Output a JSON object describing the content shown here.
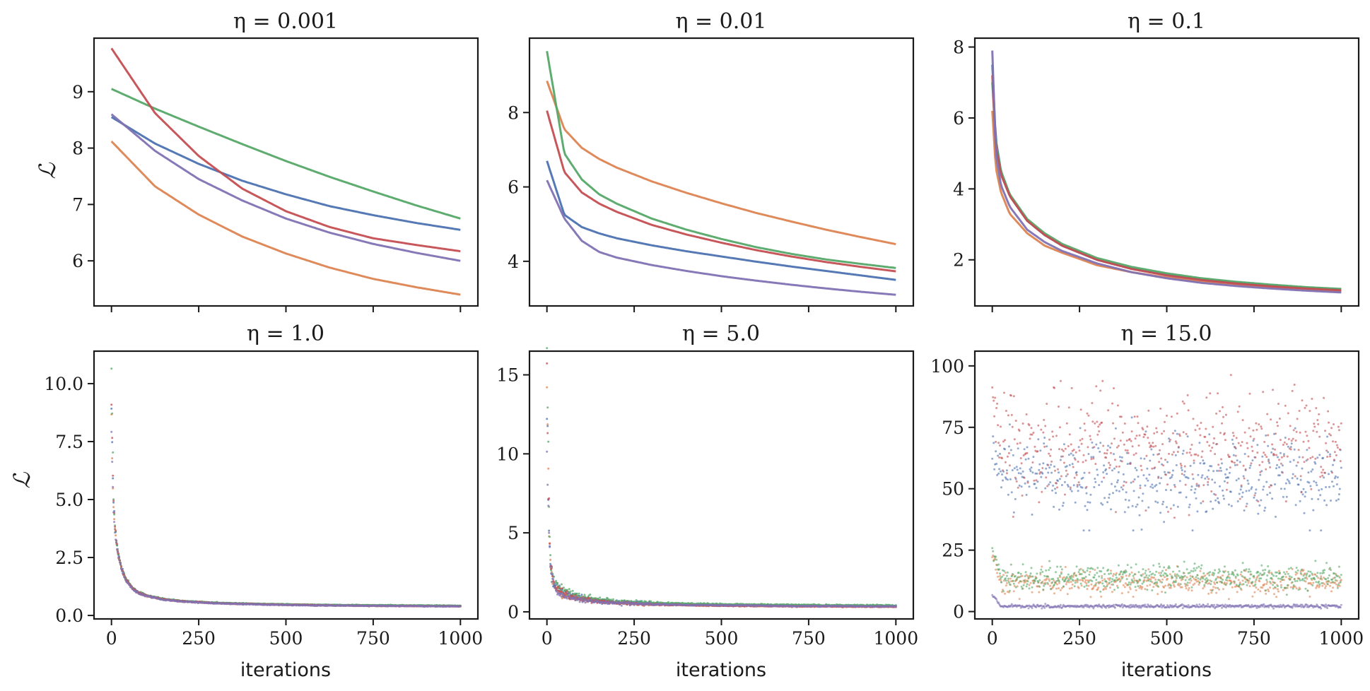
{
  "chart_data": [
    {
      "type": "scatter",
      "title": "η = 0.001",
      "xlabel": "",
      "ylabel": "ℒ",
      "xlim": [
        -50,
        1050
      ],
      "ylim": [
        5.2,
        9.95
      ],
      "x_ticks": [
        0,
        250,
        500,
        750,
        1000
      ],
      "x_tick_labels_shown": false,
      "y_ticks": [
        6,
        7,
        8,
        9
      ],
      "y_tick_labels": [
        "6",
        "7",
        "8",
        "9"
      ],
      "x": [
        0,
        125,
        250,
        375,
        500,
        625,
        750,
        875,
        1000
      ],
      "series": [
        {
          "name": "blue",
          "values": [
            8.55,
            8.08,
            7.72,
            7.42,
            7.18,
            6.97,
            6.81,
            6.67,
            6.55
          ]
        },
        {
          "name": "orange",
          "values": [
            8.12,
            7.32,
            6.82,
            6.43,
            6.13,
            5.88,
            5.68,
            5.53,
            5.4
          ]
        },
        {
          "name": "green",
          "values": [
            9.05,
            8.7,
            8.38,
            8.07,
            7.77,
            7.49,
            7.23,
            6.98,
            6.75
          ]
        },
        {
          "name": "red",
          "values": [
            9.77,
            8.62,
            7.86,
            7.28,
            6.88,
            6.6,
            6.4,
            6.28,
            6.17
          ]
        },
        {
          "name": "purple",
          "values": [
            8.6,
            7.95,
            7.45,
            7.07,
            6.75,
            6.5,
            6.3,
            6.14,
            6.0
          ]
        }
      ]
    },
    {
      "type": "scatter",
      "title": "η = 0.01",
      "xlabel": "",
      "ylabel": "",
      "xlim": [
        -50,
        1050
      ],
      "ylim": [
        2.8,
        10.0
      ],
      "x_ticks": [
        0,
        250,
        500,
        750,
        1000
      ],
      "x_tick_labels_shown": false,
      "y_ticks": [
        4,
        6,
        8
      ],
      "y_tick_labels": [
        "4",
        "6",
        "8"
      ],
      "x": [
        0,
        50,
        100,
        150,
        200,
        300,
        400,
        500,
        600,
        700,
        800,
        900,
        1000
      ],
      "series": [
        {
          "name": "blue",
          "values": [
            6.7,
            5.25,
            4.92,
            4.75,
            4.62,
            4.43,
            4.27,
            4.13,
            3.99,
            3.86,
            3.74,
            3.62,
            3.5
          ]
        },
        {
          "name": "orange",
          "values": [
            8.85,
            7.55,
            7.05,
            6.75,
            6.52,
            6.15,
            5.84,
            5.56,
            5.3,
            5.07,
            4.85,
            4.65,
            4.46
          ]
        },
        {
          "name": "green",
          "values": [
            9.65,
            6.9,
            6.2,
            5.8,
            5.55,
            5.15,
            4.85,
            4.6,
            4.38,
            4.2,
            4.05,
            3.93,
            3.82
          ]
        },
        {
          "name": "red",
          "values": [
            8.05,
            6.4,
            5.85,
            5.55,
            5.33,
            4.98,
            4.72,
            4.5,
            4.3,
            4.13,
            3.98,
            3.85,
            3.73
          ]
        },
        {
          "name": "purple",
          "values": [
            6.18,
            5.15,
            4.55,
            4.25,
            4.1,
            3.9,
            3.74,
            3.6,
            3.48,
            3.37,
            3.27,
            3.18,
            3.1
          ]
        }
      ]
    },
    {
      "type": "scatter",
      "title": "η = 0.1",
      "xlabel": "",
      "ylabel": "",
      "xlim": [
        -50,
        1050
      ],
      "ylim": [
        0.7,
        8.25
      ],
      "x_ticks": [
        0,
        250,
        500,
        750,
        1000
      ],
      "x_tick_labels_shown": false,
      "y_ticks": [
        2,
        4,
        6,
        8
      ],
      "y_tick_labels": [
        "2",
        "4",
        "6",
        "8"
      ],
      "x": [
        0,
        10,
        25,
        50,
        100,
        150,
        200,
        300,
        400,
        500,
        600,
        700,
        800,
        900,
        1000
      ],
      "series": [
        {
          "name": "blue",
          "values": [
            7.5,
            5.4,
            4.5,
            3.8,
            3.1,
            2.7,
            2.4,
            2.0,
            1.75,
            1.58,
            1.45,
            1.35,
            1.27,
            1.21,
            1.16
          ]
        },
        {
          "name": "orange",
          "values": [
            6.2,
            4.6,
            3.9,
            3.3,
            2.75,
            2.4,
            2.2,
            1.85,
            1.65,
            1.5,
            1.38,
            1.29,
            1.22,
            1.16,
            1.11
          ]
        },
        {
          "name": "green",
          "values": [
            7.0,
            5.3,
            4.5,
            3.85,
            3.15,
            2.75,
            2.45,
            2.05,
            1.8,
            1.62,
            1.48,
            1.38,
            1.3,
            1.23,
            1.18
          ]
        },
        {
          "name": "red",
          "values": [
            7.2,
            5.2,
            4.4,
            3.8,
            3.1,
            2.7,
            2.4,
            2.0,
            1.74,
            1.56,
            1.43,
            1.33,
            1.25,
            1.19,
            1.14
          ]
        },
        {
          "name": "purple",
          "values": [
            7.9,
            5.0,
            4.1,
            3.5,
            2.85,
            2.5,
            2.25,
            1.9,
            1.65,
            1.48,
            1.35,
            1.26,
            1.19,
            1.13,
            1.08
          ]
        }
      ]
    },
    {
      "type": "scatter",
      "title": "η = 1.0",
      "xlabel": "iterations",
      "ylabel": "ℒ",
      "xlim": [
        -50,
        1050
      ],
      "ylim": [
        -0.15,
        11.4
      ],
      "x_ticks": [
        0,
        250,
        500,
        750,
        1000
      ],
      "x_tick_labels": [
        "0",
        "250",
        "500",
        "750",
        "1000"
      ],
      "y_ticks": [
        0.0,
        2.5,
        5.0,
        7.5,
        10.0
      ],
      "y_tick_labels": [
        "0.0",
        "2.5",
        "5.0",
        "7.5",
        "10.0"
      ],
      "x": [
        0,
        3,
        6,
        10,
        15,
        20,
        30,
        40,
        60,
        80,
        100,
        150,
        200,
        300,
        400,
        500,
        600,
        700,
        800,
        900,
        1000
      ],
      "series": [
        {
          "name": "blue",
          "values": [
            9.0,
            6.5,
            4.8,
            3.8,
            3.1,
            2.6,
            2.0,
            1.6,
            1.18,
            0.98,
            0.86,
            0.7,
            0.62,
            0.54,
            0.5,
            0.47,
            0.45,
            0.44,
            0.43,
            0.42,
            0.41
          ]
        },
        {
          "name": "orange",
          "values": [
            8.5,
            6.0,
            4.6,
            3.7,
            3.0,
            2.55,
            1.95,
            1.58,
            1.16,
            0.96,
            0.85,
            0.69,
            0.61,
            0.53,
            0.49,
            0.46,
            0.44,
            0.43,
            0.42,
            0.41,
            0.4
          ]
        },
        {
          "name": "green",
          "values": [
            10.8,
            8.0,
            5.0,
            3.9,
            3.15,
            2.62,
            2.02,
            1.62,
            1.19,
            0.99,
            0.87,
            0.71,
            0.63,
            0.55,
            0.51,
            0.48,
            0.46,
            0.45,
            0.44,
            0.43,
            0.42
          ]
        },
        {
          "name": "red",
          "values": [
            9.1,
            6.7,
            4.9,
            3.85,
            3.12,
            2.6,
            2.0,
            1.6,
            1.17,
            0.97,
            0.85,
            0.69,
            0.61,
            0.53,
            0.49,
            0.46,
            0.44,
            0.42,
            0.41,
            0.4,
            0.39
          ]
        },
        {
          "name": "purple",
          "values": [
            8.0,
            6.0,
            4.5,
            3.6,
            2.95,
            2.5,
            1.92,
            1.55,
            1.14,
            0.95,
            0.84,
            0.68,
            0.6,
            0.52,
            0.48,
            0.45,
            0.43,
            0.42,
            0.41,
            0.4,
            0.39
          ]
        }
      ]
    },
    {
      "type": "scatter",
      "title": "η = 5.0",
      "xlabel": "iterations",
      "ylabel": "",
      "xlim": [
        -50,
        1050
      ],
      "ylim": [
        -0.45,
        16.5
      ],
      "x_ticks": [
        0,
        250,
        500,
        750,
        1000
      ],
      "x_tick_labels": [
        "0",
        "250",
        "500",
        "750",
        "1000"
      ],
      "y_ticks": [
        0,
        5,
        10,
        15
      ],
      "y_tick_labels": [
        "0",
        "5",
        "10",
        "15"
      ],
      "x": [
        0,
        3,
        6,
        10,
        15,
        20,
        30,
        50,
        75,
        100,
        150,
        200,
        300,
        400,
        500,
        600,
        700,
        800,
        900,
        1000
      ],
      "series": [
        {
          "name": "blue",
          "values": [
            11.5,
            8.0,
            5.0,
            3.0,
            2.3,
            1.9,
            1.5,
            1.2,
            1.0,
            0.85,
            0.7,
            0.6,
            0.52,
            0.47,
            0.44,
            0.42,
            0.4,
            0.39,
            0.38,
            0.37
          ]
        },
        {
          "name": "orange",
          "values": [
            13.0,
            9.5,
            5.5,
            3.2,
            2.2,
            1.7,
            1.3,
            1.05,
            0.9,
            0.8,
            0.65,
            0.57,
            0.48,
            0.43,
            0.4,
            0.38,
            0.37,
            0.35,
            0.34,
            0.33
          ]
        },
        {
          "name": "green",
          "values": [
            15.5,
            10.5,
            6.0,
            3.5,
            2.5,
            2.0,
            1.6,
            1.3,
            1.1,
            0.95,
            0.78,
            0.67,
            0.58,
            0.52,
            0.48,
            0.46,
            0.44,
            0.43,
            0.42,
            0.41
          ]
        },
        {
          "name": "red",
          "values": [
            14.8,
            10.0,
            5.8,
            3.4,
            2.4,
            1.9,
            1.45,
            1.15,
            0.95,
            0.8,
            0.65,
            0.56,
            0.47,
            0.42,
            0.39,
            0.37,
            0.35,
            0.34,
            0.33,
            0.32
          ]
        },
        {
          "name": "purple",
          "values": [
            10.0,
            7.0,
            4.5,
            2.8,
            2.0,
            1.6,
            1.25,
            1.0,
            0.85,
            0.75,
            0.62,
            0.55,
            0.48,
            0.44,
            0.41,
            0.39,
            0.37,
            0.36,
            0.35,
            0.34
          ]
        }
      ]
    },
    {
      "type": "scatter",
      "title": "η = 15.0",
      "xlabel": "iterations",
      "ylabel": "",
      "xlim": [
        -50,
        1050
      ],
      "ylim": [
        -3,
        106
      ],
      "x_ticks": [
        0,
        250,
        500,
        750,
        1000
      ],
      "x_tick_labels": [
        "0",
        "250",
        "500",
        "750",
        "1000"
      ],
      "y_ticks": [
        0,
        25,
        50,
        75,
        100
      ],
      "y_tick_labels": [
        "0",
        "25",
        "50",
        "75",
        "100"
      ],
      "series": [
        {
          "name": "blue",
          "mean": 55,
          "spread": 8,
          "range": [
            33,
            80
          ]
        },
        {
          "name": "orange",
          "mean": 12,
          "spread": 2.5,
          "range": [
            5,
            30
          ]
        },
        {
          "name": "green",
          "mean": 14,
          "spread": 2.5,
          "range": [
            6,
            32
          ]
        },
        {
          "name": "red",
          "mean": 68,
          "spread": 11,
          "range": [
            33,
            101
          ]
        },
        {
          "name": "purple",
          "mean": 2.2,
          "spread": 0.35,
          "range": [
            1,
            10
          ]
        }
      ]
    }
  ],
  "colors": {
    "blue": "#4c72b0",
    "orange": "#dd8452",
    "green": "#55a868",
    "red": "#c44e52",
    "purple": "#8172b3"
  }
}
